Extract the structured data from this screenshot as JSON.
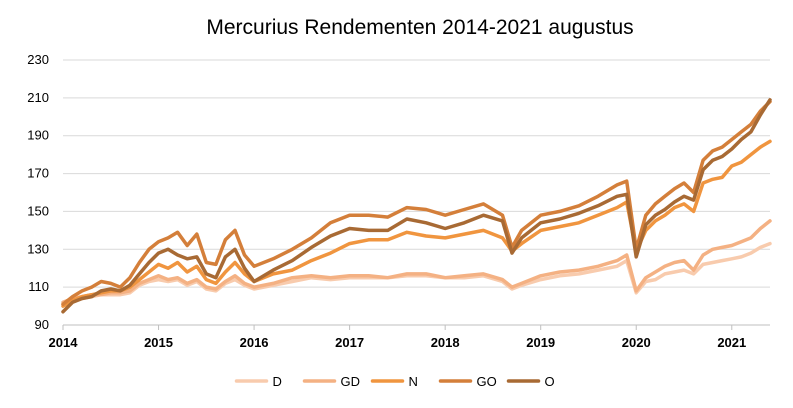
{
  "chart_data": {
    "type": "line",
    "title": "Mercurius Rendementen 2014-2021 augustus",
    "xlabel": "",
    "ylabel": "",
    "x_ticks": [
      "2014",
      "2015",
      "2016",
      "2017",
      "2018",
      "2019",
      "2020",
      "2021"
    ],
    "xlim": [
      2014.0,
      2021.4
    ],
    "ylim": [
      90,
      230
    ],
    "y_ticks": [
      90,
      110,
      130,
      150,
      170,
      190,
      210,
      230
    ],
    "grid": true,
    "legend": "bottom",
    "x": [
      2014.0,
      2014.1,
      2014.2,
      2014.3,
      2014.4,
      2014.5,
      2014.6,
      2014.7,
      2014.8,
      2014.9,
      2015.0,
      2015.1,
      2015.2,
      2015.3,
      2015.4,
      2015.5,
      2015.6,
      2015.7,
      2015.8,
      2015.9,
      2016.0,
      2016.2,
      2016.4,
      2016.6,
      2016.8,
      2017.0,
      2017.2,
      2017.4,
      2017.6,
      2017.8,
      2018.0,
      2018.2,
      2018.4,
      2018.6,
      2018.7,
      2018.8,
      2019.0,
      2019.2,
      2019.4,
      2019.6,
      2019.8,
      2019.9,
      2020.0,
      2020.1,
      2020.2,
      2020.3,
      2020.4,
      2020.5,
      2020.6,
      2020.7,
      2020.8,
      2020.9,
      2021.0,
      2021.1,
      2021.2,
      2021.3,
      2021.4
    ],
    "series": [
      {
        "name": "D",
        "color": "#f8cbad",
        "values": [
          101,
          103,
          104,
          105,
          106,
          106,
          106,
          107,
          111,
          113,
          114,
          113,
          114,
          111,
          113,
          109,
          108,
          112,
          114,
          111,
          109,
          111,
          113,
          115,
          114,
          115,
          115,
          115,
          116,
          116,
          115,
          115,
          116,
          113,
          109,
          111,
          114,
          116,
          117,
          119,
          121,
          124,
          107,
          113,
          114,
          117,
          118,
          119,
          117,
          122,
          123,
          124,
          125,
          126,
          128,
          131,
          133
        ]
      },
      {
        "name": "GD",
        "color": "#f4b183",
        "values": [
          102,
          104,
          105,
          106,
          106,
          107,
          107,
          108,
          112,
          114,
          116,
          114,
          115,
          112,
          114,
          110,
          109,
          113,
          116,
          112,
          110,
          112,
          115,
          116,
          115,
          116,
          116,
          115,
          117,
          117,
          115,
          116,
          117,
          114,
          110,
          112,
          116,
          118,
          119,
          121,
          124,
          127,
          108,
          115,
          118,
          121,
          123,
          124,
          119,
          127,
          130,
          131,
          132,
          134,
          136,
          141,
          145
        ]
      },
      {
        "name": "N",
        "color": "#f0953f",
        "values": [
          100,
          103,
          105,
          106,
          107,
          108,
          108,
          110,
          114,
          118,
          122,
          120,
          123,
          118,
          121,
          114,
          112,
          118,
          123,
          117,
          113,
          117,
          119,
          124,
          128,
          133,
          135,
          135,
          139,
          137,
          136,
          138,
          140,
          136,
          129,
          133,
          140,
          142,
          144,
          148,
          152,
          155,
          129,
          140,
          145,
          148,
          152,
          154,
          150,
          165,
          167,
          168,
          174,
          176,
          180,
          184,
          187
        ]
      },
      {
        "name": "GO",
        "color": "#d47f3a",
        "values": [
          101,
          105,
          108,
          110,
          113,
          112,
          110,
          115,
          123,
          130,
          134,
          136,
          139,
          132,
          138,
          123,
          122,
          135,
          140,
          127,
          121,
          125,
          130,
          136,
          144,
          148,
          148,
          147,
          152,
          151,
          148,
          151,
          154,
          148,
          131,
          140,
          148,
          150,
          153,
          158,
          164,
          166,
          130,
          148,
          154,
          158,
          162,
          165,
          160,
          177,
          182,
          184,
          188,
          192,
          196,
          203,
          208
        ]
      },
      {
        "name": "O",
        "color": "#a86a34",
        "values": [
          97,
          102,
          104,
          105,
          108,
          109,
          108,
          111,
          117,
          123,
          128,
          130,
          127,
          125,
          126,
          117,
          115,
          126,
          130,
          120,
          113,
          119,
          124,
          131,
          137,
          141,
          140,
          140,
          146,
          144,
          141,
          144,
          148,
          145,
          128,
          136,
          144,
          146,
          149,
          153,
          158,
          159,
          126,
          143,
          148,
          151,
          155,
          158,
          156,
          172,
          177,
          179,
          183,
          188,
          192,
          201,
          209
        ]
      }
    ]
  }
}
